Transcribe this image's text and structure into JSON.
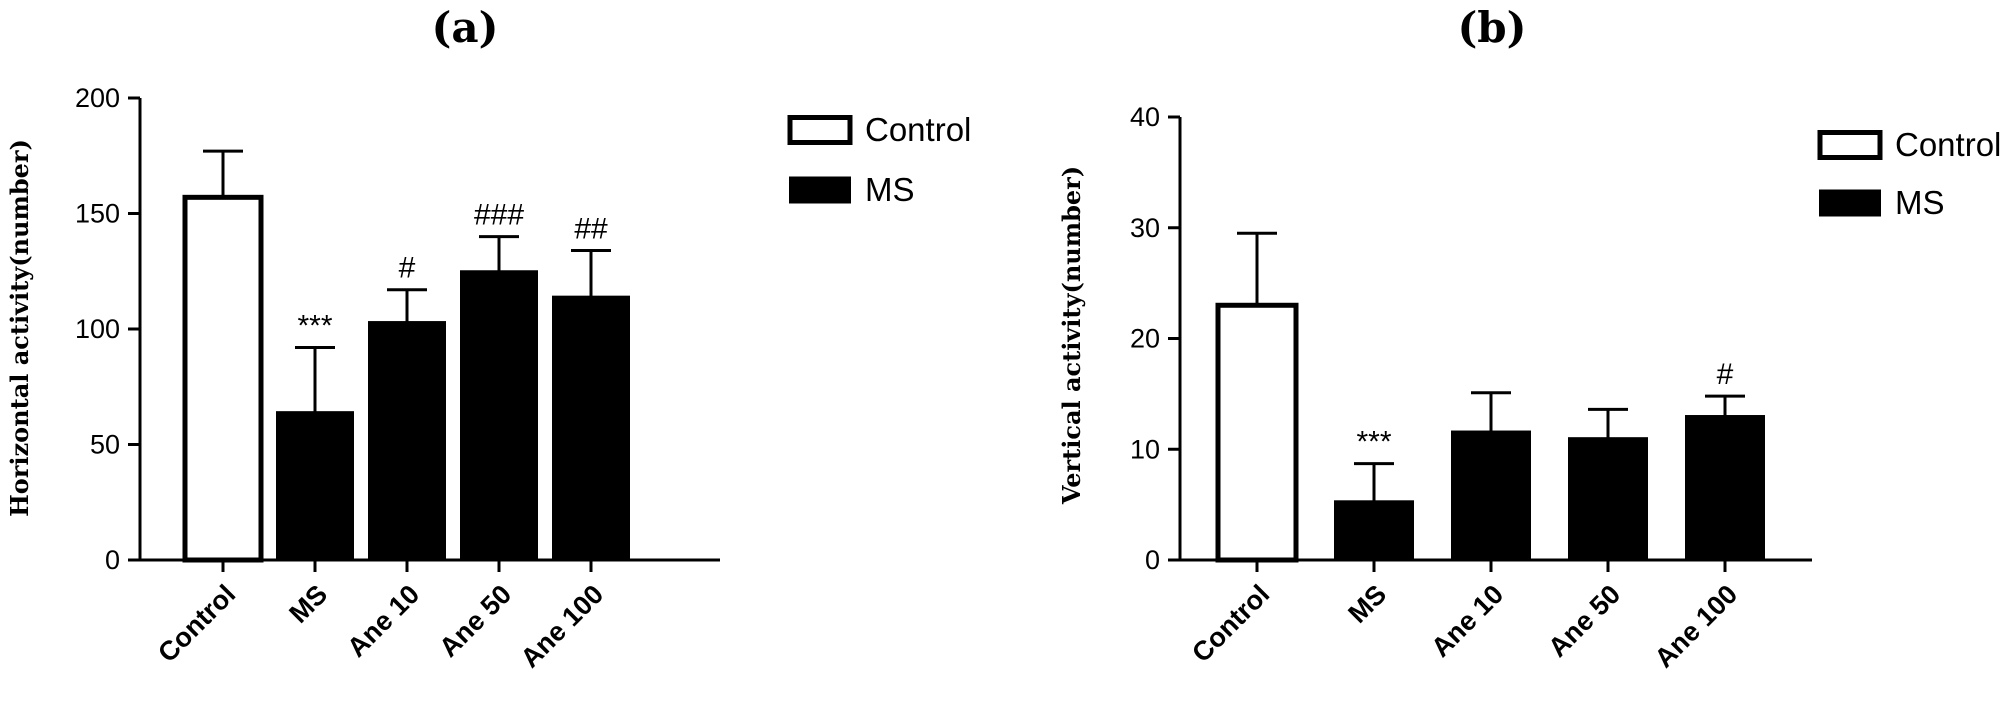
{
  "chart_data": [
    {
      "type": "bar",
      "panel_label": "(a)",
      "ylabel": "Horizontal activity(number)",
      "ylim": [
        0,
        200
      ],
      "yticks": [
        "0",
        "50",
        "100",
        "150",
        "200"
      ],
      "categories": [
        "Control",
        "MS",
        "Ane 10",
        "Ane 50",
        "Ane 100"
      ],
      "values": [
        157,
        64,
        103,
        125,
        114
      ],
      "errors": [
        20,
        28,
        14,
        15,
        20
      ],
      "groups": [
        "Control",
        "MS",
        "MS",
        "MS",
        "MS"
      ],
      "annotations": [
        "",
        "***",
        "#",
        "###",
        "##"
      ],
      "legend": [
        "Control",
        "MS"
      ],
      "legend_position": "top-right",
      "grid": false
    },
    {
      "type": "bar",
      "panel_label": "(b)",
      "ylabel": "Vertical activity(number)",
      "ylim": [
        0,
        40
      ],
      "yticks": [
        "0",
        "10",
        "20",
        "30",
        "40"
      ],
      "categories": [
        "Control",
        "MS",
        "Ane 10",
        "Ane 50",
        "Ane 100"
      ],
      "values": [
        23,
        5.3,
        11.6,
        11,
        13
      ],
      "errors": [
        6.5,
        3.4,
        3.5,
        2.6,
        1.8
      ],
      "groups": [
        "Control",
        "MS",
        "MS",
        "MS",
        "MS"
      ],
      "annotations": [
        "",
        "***",
        "",
        "",
        "#"
      ],
      "legend": [
        "Control",
        "MS"
      ],
      "legend_position": "top-right",
      "grid": false
    }
  ],
  "colors": {
    "control_fill": "#ffffff",
    "ms_fill": "#000000",
    "stroke": "#000000"
  }
}
